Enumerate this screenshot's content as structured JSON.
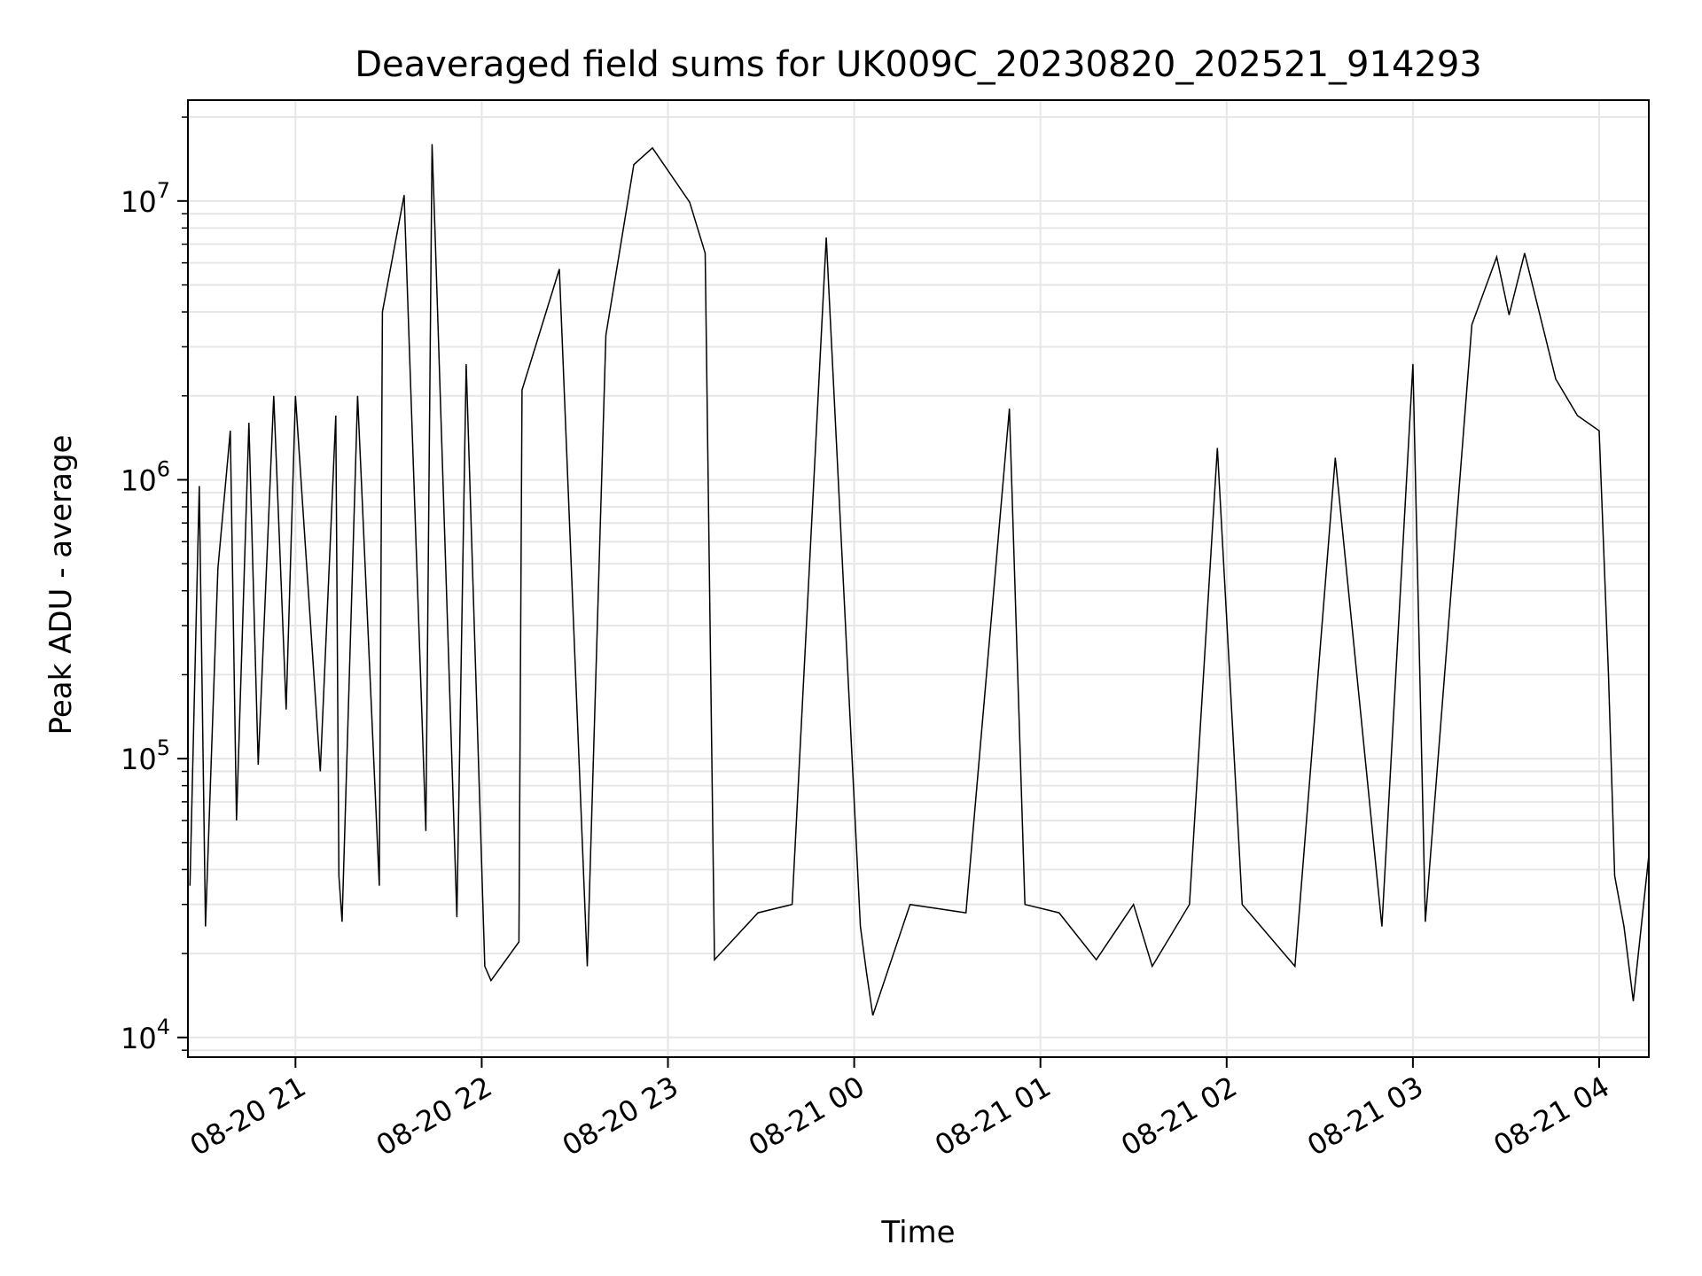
{
  "chart_data": {
    "type": "line",
    "title": "Deaveraged field sums for UK009C_20230820_202521_914293",
    "xlabel": "Time",
    "ylabel": "Peak ADU - average",
    "x_range": [
      "2023-08-20 20:25:21",
      "2023-08-21 04:16:00"
    ],
    "y_scale": "log",
    "ylim": [
      8500,
      23000000
    ],
    "grid": true,
    "line_color": "#000000",
    "grid_color": "#e6e6e6",
    "x_ticks": [
      {
        "value": "2023-08-20 21:00",
        "label": "08-20 21"
      },
      {
        "value": "2023-08-20 22:00",
        "label": "08-20 22"
      },
      {
        "value": "2023-08-20 23:00",
        "label": "08-20 23"
      },
      {
        "value": "2023-08-21 00:00",
        "label": "08-21 00"
      },
      {
        "value": "2023-08-21 01:00",
        "label": "08-21 01"
      },
      {
        "value": "2023-08-21 02:00",
        "label": "08-21 02"
      },
      {
        "value": "2023-08-21 03:00",
        "label": "08-21 03"
      },
      {
        "value": "2023-08-21 04:00",
        "label": "08-21 04"
      }
    ],
    "y_ticks": [
      {
        "value": 10000,
        "base": "10",
        "exp": "4"
      },
      {
        "value": 100000,
        "base": "10",
        "exp": "5"
      },
      {
        "value": 1000000,
        "base": "10",
        "exp": "6"
      },
      {
        "value": 10000000,
        "base": "10",
        "exp": "7"
      }
    ],
    "series": [
      {
        "points": [
          [
            "2023-08-20 20:26",
            35000
          ],
          [
            "2023-08-20 20:29",
            950000
          ],
          [
            "2023-08-20 20:31",
            25000
          ],
          [
            "2023-08-20 20:35",
            480000
          ],
          [
            "2023-08-20 20:39",
            1500000
          ],
          [
            "2023-08-20 20:41",
            60000
          ],
          [
            "2023-08-20 20:45",
            1600000
          ],
          [
            "2023-08-20 20:48",
            95000
          ],
          [
            "2023-08-20 20:53",
            2000000
          ],
          [
            "2023-08-20 20:57",
            150000
          ],
          [
            "2023-08-20 21:00",
            2000000
          ],
          [
            "2023-08-20 21:08",
            90000
          ],
          [
            "2023-08-20 21:13",
            1700000
          ],
          [
            "2023-08-20 21:14",
            38000
          ],
          [
            "2023-08-20 21:15",
            26000
          ],
          [
            "2023-08-20 21:20",
            2000000
          ],
          [
            "2023-08-20 21:27",
            35000
          ],
          [
            "2023-08-20 21:28",
            4000000
          ],
          [
            "2023-08-20 21:35",
            10500000
          ],
          [
            "2023-08-20 21:42",
            55000
          ],
          [
            "2023-08-20 21:44",
            16000000
          ],
          [
            "2023-08-20 21:45",
            7500000
          ],
          [
            "2023-08-20 21:52",
            27000
          ],
          [
            "2023-08-20 21:55",
            2600000
          ],
          [
            "2023-08-20 22:01",
            18000
          ],
          [
            "2023-08-20 22:03",
            16000
          ],
          [
            "2023-08-20 22:12",
            22000
          ],
          [
            "2023-08-20 22:13",
            2100000
          ],
          [
            "2023-08-20 22:25",
            5700000
          ],
          [
            "2023-08-20 22:34",
            18000
          ],
          [
            "2023-08-20 22:40",
            3300000
          ],
          [
            "2023-08-20 22:49",
            13500000
          ],
          [
            "2023-08-20 22:55",
            15500000
          ],
          [
            "2023-08-20 23:07",
            9900000
          ],
          [
            "2023-08-20 23:12",
            6500000
          ],
          [
            "2023-08-20 23:15",
            19000
          ],
          [
            "2023-08-20 23:29",
            28000
          ],
          [
            "2023-08-20 23:40",
            30000
          ],
          [
            "2023-08-20 23:51",
            7400000
          ],
          [
            "2023-08-21 00:02",
            25000
          ],
          [
            "2023-08-21 00:04",
            17000
          ],
          [
            "2023-08-21 00:06",
            12000
          ],
          [
            "2023-08-21 00:18",
            30000
          ],
          [
            "2023-08-21 00:36",
            28000
          ],
          [
            "2023-08-21 00:50",
            1800000
          ],
          [
            "2023-08-21 00:55",
            30000
          ],
          [
            "2023-08-21 01:06",
            28000
          ],
          [
            "2023-08-21 01:18",
            19000
          ],
          [
            "2023-08-21 01:30",
            30000
          ],
          [
            "2023-08-21 01:36",
            18000
          ],
          [
            "2023-08-21 01:48",
            30000
          ],
          [
            "2023-08-21 01:57",
            1300000
          ],
          [
            "2023-08-21 02:05",
            30000
          ],
          [
            "2023-08-21 02:22",
            18000
          ],
          [
            "2023-08-21 02:35",
            1200000
          ],
          [
            "2023-08-21 02:50",
            25000
          ],
          [
            "2023-08-21 03:00",
            2600000
          ],
          [
            "2023-08-21 03:04",
            26000
          ],
          [
            "2023-08-21 03:19",
            3600000
          ],
          [
            "2023-08-21 03:27",
            6300000
          ],
          [
            "2023-08-21 03:31",
            3900000
          ],
          [
            "2023-08-21 03:36",
            6500000
          ],
          [
            "2023-08-21 03:46",
            2300000
          ],
          [
            "2023-08-21 03:53",
            1700000
          ],
          [
            "2023-08-21 04:00",
            1500000
          ],
          [
            "2023-08-21 04:03",
            200000
          ],
          [
            "2023-08-21 04:05",
            38000
          ],
          [
            "2023-08-21 04:08",
            25000
          ],
          [
            "2023-08-21 04:11",
            13500
          ],
          [
            "2023-08-21 04:16",
            45000
          ]
        ]
      }
    ]
  }
}
